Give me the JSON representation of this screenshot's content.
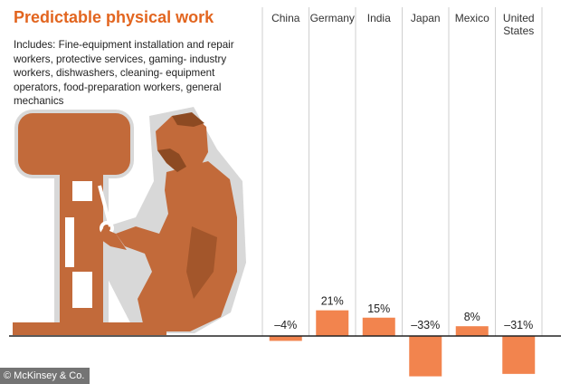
{
  "title": "Predictable physical work",
  "description": "Includes: Fine-equipment installation and repair workers, protective services, gaming- industry workers, dishwashers, cleaning- equipment operators, food-preparation workers, general mechanics",
  "credit": "© McKinsey & Co.",
  "colors": {
    "accent": "#e2651f",
    "bar": "#f2844e",
    "illustration": "#c26a3a",
    "illustration_dark": "#8d4a22",
    "illustration_halo": "#d8d8d8"
  },
  "chart_data": {
    "type": "bar",
    "categories": [
      "China",
      "Germany",
      "India",
      "Japan",
      "Mexico",
      "United States"
    ],
    "values": [
      -4,
      21,
      15,
      -33,
      8,
      -31
    ],
    "labels": [
      "–4%",
      "21%",
      "15%",
      "–33%",
      "8%",
      "–31%"
    ],
    "ylim": [
      -40,
      40
    ],
    "baseline": 0
  }
}
